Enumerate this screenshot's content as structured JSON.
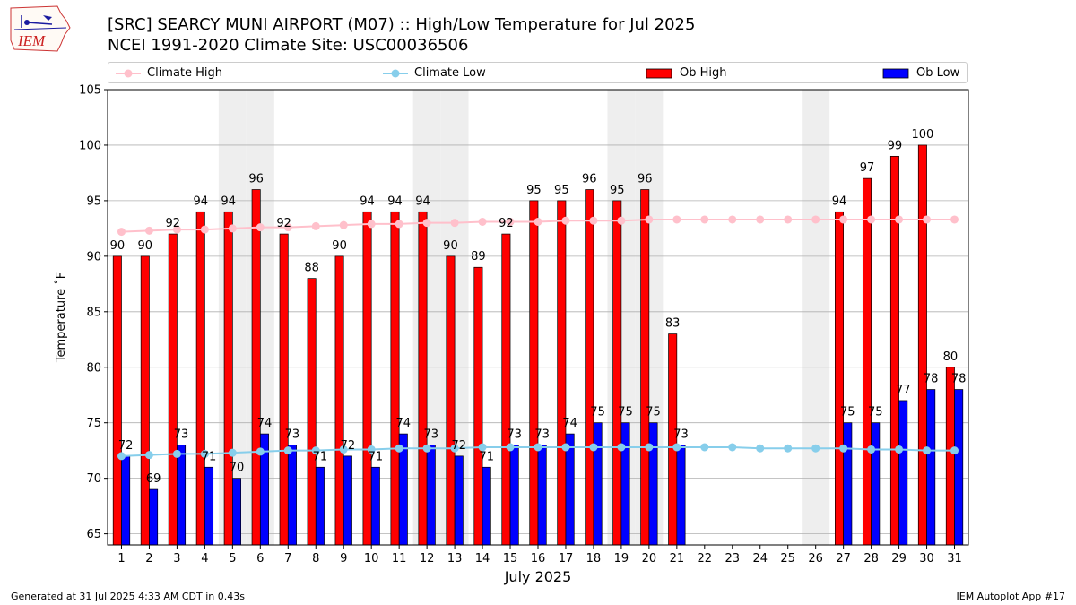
{
  "header": {
    "title_line1": "[SRC] SEARCY MUNI AIRPORT (M07) :: High/Low Temperature for Jul 2025",
    "title_line2": "NCEI 1991-2020 Climate Site: USC00036506",
    "logo_text": "IEM"
  },
  "footer": {
    "generated": "Generated at 31 Jul 2025 4:33 AM CDT in 0.43s",
    "app": "IEM Autoplot App #17"
  },
  "chart_data": {
    "type": "bar",
    "xlabel": "July 2025",
    "ylabel": "Temperature ˚F",
    "ylim": [
      64,
      105
    ],
    "yticks": [
      65,
      70,
      75,
      80,
      85,
      90,
      95,
      100,
      105
    ],
    "grid": true,
    "legend_placement": "top",
    "categories": [
      "1",
      "2",
      "3",
      "4",
      "5",
      "6",
      "7",
      "8",
      "9",
      "10",
      "11",
      "12",
      "13",
      "14",
      "15",
      "16",
      "17",
      "18",
      "19",
      "20",
      "21",
      "22",
      "23",
      "24",
      "25",
      "26",
      "27",
      "28",
      "29",
      "30",
      "31"
    ],
    "weekend_days": [
      5,
      6,
      12,
      13,
      19,
      20,
      26
    ],
    "series": [
      {
        "name": "Ob High",
        "kind": "bar",
        "color": "#ff0000",
        "values": [
          90,
          90,
          92,
          94,
          94,
          96,
          92,
          88,
          90,
          94,
          94,
          94,
          90,
          89,
          92,
          95,
          95,
          96,
          95,
          96,
          83,
          null,
          null,
          null,
          null,
          null,
          94,
          97,
          99,
          100,
          80
        ]
      },
      {
        "name": "Ob Low",
        "kind": "bar",
        "color": "#0000ff",
        "values": [
          72,
          69,
          73,
          71,
          70,
          74,
          73,
          71,
          72,
          71,
          74,
          73,
          72,
          71,
          73,
          73,
          74,
          75,
          75,
          75,
          73,
          null,
          null,
          null,
          null,
          null,
          75,
          75,
          77,
          78,
          78
        ]
      },
      {
        "name": "Climate High",
        "kind": "line",
        "color": "#ffc0cb",
        "values": [
          92.2,
          92.3,
          92.4,
          92.4,
          92.5,
          92.6,
          92.6,
          92.7,
          92.8,
          92.9,
          92.9,
          93.0,
          93.0,
          93.1,
          93.1,
          93.1,
          93.2,
          93.2,
          93.2,
          93.3,
          93.3,
          93.3,
          93.3,
          93.3,
          93.3,
          93.3,
          93.3,
          93.3,
          93.3,
          93.3,
          93.3
        ]
      },
      {
        "name": "Climate Low",
        "kind": "line",
        "color": "#87ceeb",
        "values": [
          72.0,
          72.1,
          72.2,
          72.2,
          72.3,
          72.4,
          72.5,
          72.5,
          72.6,
          72.6,
          72.7,
          72.7,
          72.7,
          72.8,
          72.8,
          72.8,
          72.8,
          72.8,
          72.8,
          72.8,
          72.8,
          72.8,
          72.8,
          72.7,
          72.7,
          72.7,
          72.7,
          72.6,
          72.6,
          72.5,
          72.5
        ]
      }
    ]
  }
}
